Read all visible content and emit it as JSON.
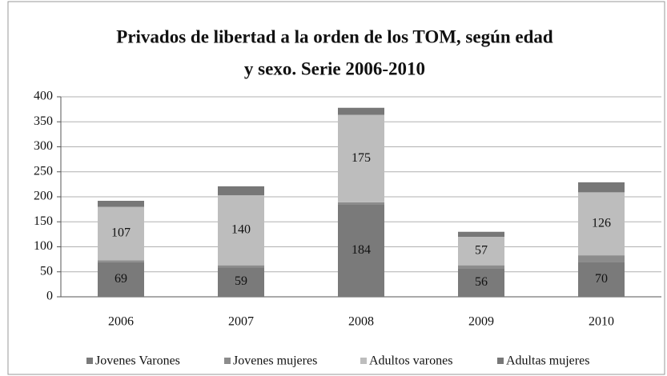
{
  "chart_data": {
    "type": "stacked_bar",
    "title": [
      "Privados de libertad a la orden de los TOM, según edad",
      "y sexo. Serie 2006-2010"
    ],
    "categories": [
      "2006",
      "2007",
      "2008",
      "2009",
      "2010"
    ],
    "series": [
      {
        "name": "Jovenes Varones",
        "color": "#7a7a7a",
        "values": [
          69,
          59,
          184,
          56,
          70
        ],
        "data_labels": true
      },
      {
        "name": "Jovenes mujeres",
        "color": "#8c8c8c",
        "values": [
          4,
          4,
          5,
          7,
          13
        ],
        "data_labels": false
      },
      {
        "name": "Adultos varones",
        "color": "#bdbdbd",
        "values": [
          107,
          140,
          175,
          57,
          126
        ],
        "data_labels": true
      },
      {
        "name": "Adultas mujeres",
        "color": "#777777",
        "values": [
          12,
          18,
          14,
          10,
          20
        ],
        "data_labels": false
      }
    ],
    "ylim": [
      0,
      400
    ],
    "yticks": [
      0,
      50,
      100,
      150,
      200,
      250,
      300,
      350,
      400
    ],
    "grid": true
  }
}
